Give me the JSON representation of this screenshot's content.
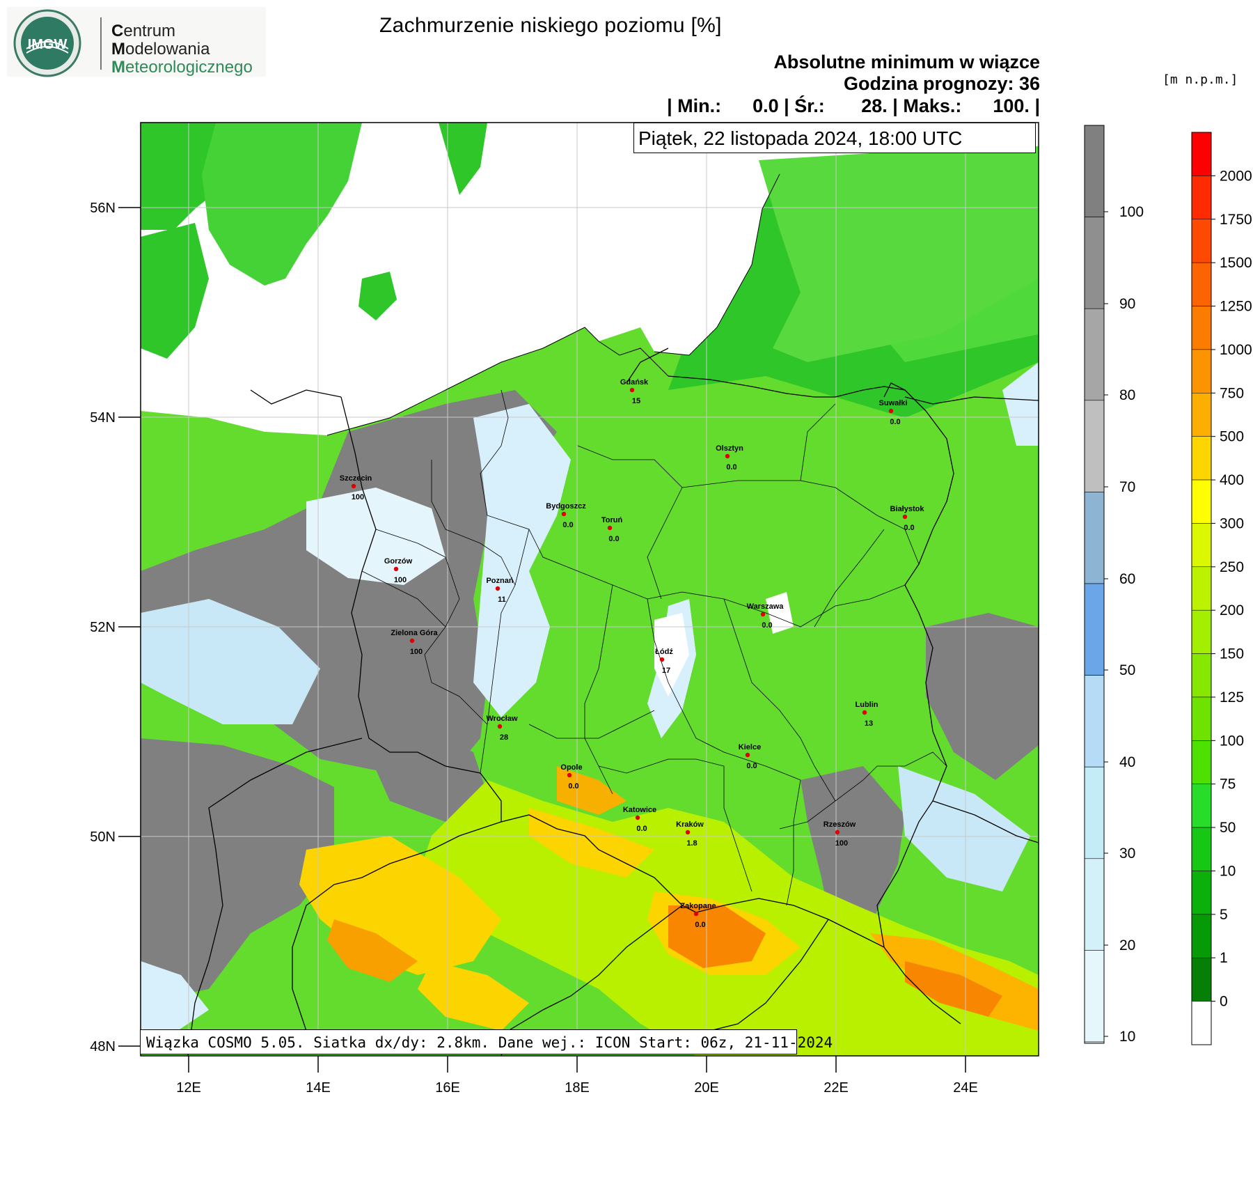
{
  "logo": {
    "badge_text": "IMGW",
    "name_lines": [
      {
        "cap": "C",
        "rest": "entrum"
      },
      {
        "cap": "M",
        "rest": "odelowania"
      },
      {
        "cap": "M",
        "rest": "eteorologicznego"
      }
    ]
  },
  "title": "Zachmurzenie niskiego poziomu [%]",
  "info": {
    "line1": "Absolutne minimum w wiązce",
    "line2": "Godzina prognozy: 36",
    "line3": "| Min.:      0.0 | Śr.:       28. | Maks.:      100. |"
  },
  "unit_label": "[m n.p.m.]",
  "date_label": "Piątek, 22 listopada 2024, 18:00 UTC",
  "footer": "Wiązka COSMO 5.05. Siatka dx/dy: 2.8km. Dane wej.: ICON Start: 06z, 21-11-2024",
  "axes": {
    "lat_labels": [
      "56N",
      "54N",
      "52N",
      "50N",
      "48N"
    ],
    "lon_labels": [
      "12E",
      "14E",
      "16E",
      "18E",
      "20E",
      "22E",
      "24E"
    ]
  },
  "cities": [
    {
      "name": "Gdańsk",
      "value": "15"
    },
    {
      "name": "Suwałki",
      "value": "0.0"
    },
    {
      "name": "Olsztyn",
      "value": "0.0"
    },
    {
      "name": "Szczecin",
      "value": "100"
    },
    {
      "name": "Bydgoszcz",
      "value": "0.0"
    },
    {
      "name": "Toruń",
      "value": "0.0"
    },
    {
      "name": "Białystok",
      "value": "0.0"
    },
    {
      "name": "Gorzów",
      "value": "100"
    },
    {
      "name": "Poznań",
      "value": "11"
    },
    {
      "name": "Warszawa",
      "value": "0.0"
    },
    {
      "name": "Zielona Góra",
      "value": "100"
    },
    {
      "name": "Łódź",
      "value": "17"
    },
    {
      "name": "Lublin",
      "value": "13"
    },
    {
      "name": "Wrocław",
      "value": "28"
    },
    {
      "name": "Kielce",
      "value": "0.0"
    },
    {
      "name": "Opole",
      "value": "0.0"
    },
    {
      "name": "Katowice",
      "value": "0.0"
    },
    {
      "name": "Kraków",
      "value": "1.8"
    },
    {
      "name": "Rzeszów",
      "value": "100"
    },
    {
      "name": "Zakopane",
      "value": "0.0"
    }
  ],
  "cloud_colorbar": {
    "labels": [
      "100",
      "90",
      "80",
      "70",
      "60",
      "50",
      "40",
      "30",
      "20",
      "10"
    ],
    "colors": [
      "#7f7f7f",
      "#8f8f8f",
      "#a6a6a6",
      "#c4c4c4",
      "#88aacc",
      "#6aa6e8",
      "#a9d0f5",
      "#bfe8f8",
      "#cdeff7",
      "#e0f5fa",
      "#edf9fc",
      "#f8fdff"
    ]
  },
  "terrain_colorbar": {
    "labels": [
      "2000",
      "1750",
      "1500",
      "1250",
      "1000",
      "750",
      "500",
      "400",
      "300",
      "250",
      "200",
      "150",
      "125",
      "100",
      "75",
      "50",
      "10",
      "5",
      "1",
      "0"
    ],
    "colors": [
      "#ff0000",
      "#fe2a00",
      "#fd4a00",
      "#fb6400",
      "#fa7d00",
      "#fb9400",
      "#fcaf00",
      "#fdd600",
      "#ffff00",
      "#dcf800",
      "#bcf200",
      "#a4ee00",
      "#86e800",
      "#6ee300",
      "#4ee000",
      "#28dd2a",
      "#16c813",
      "#0bb00b",
      "#079a07",
      "#057f05",
      "#ffffff"
    ]
  }
}
